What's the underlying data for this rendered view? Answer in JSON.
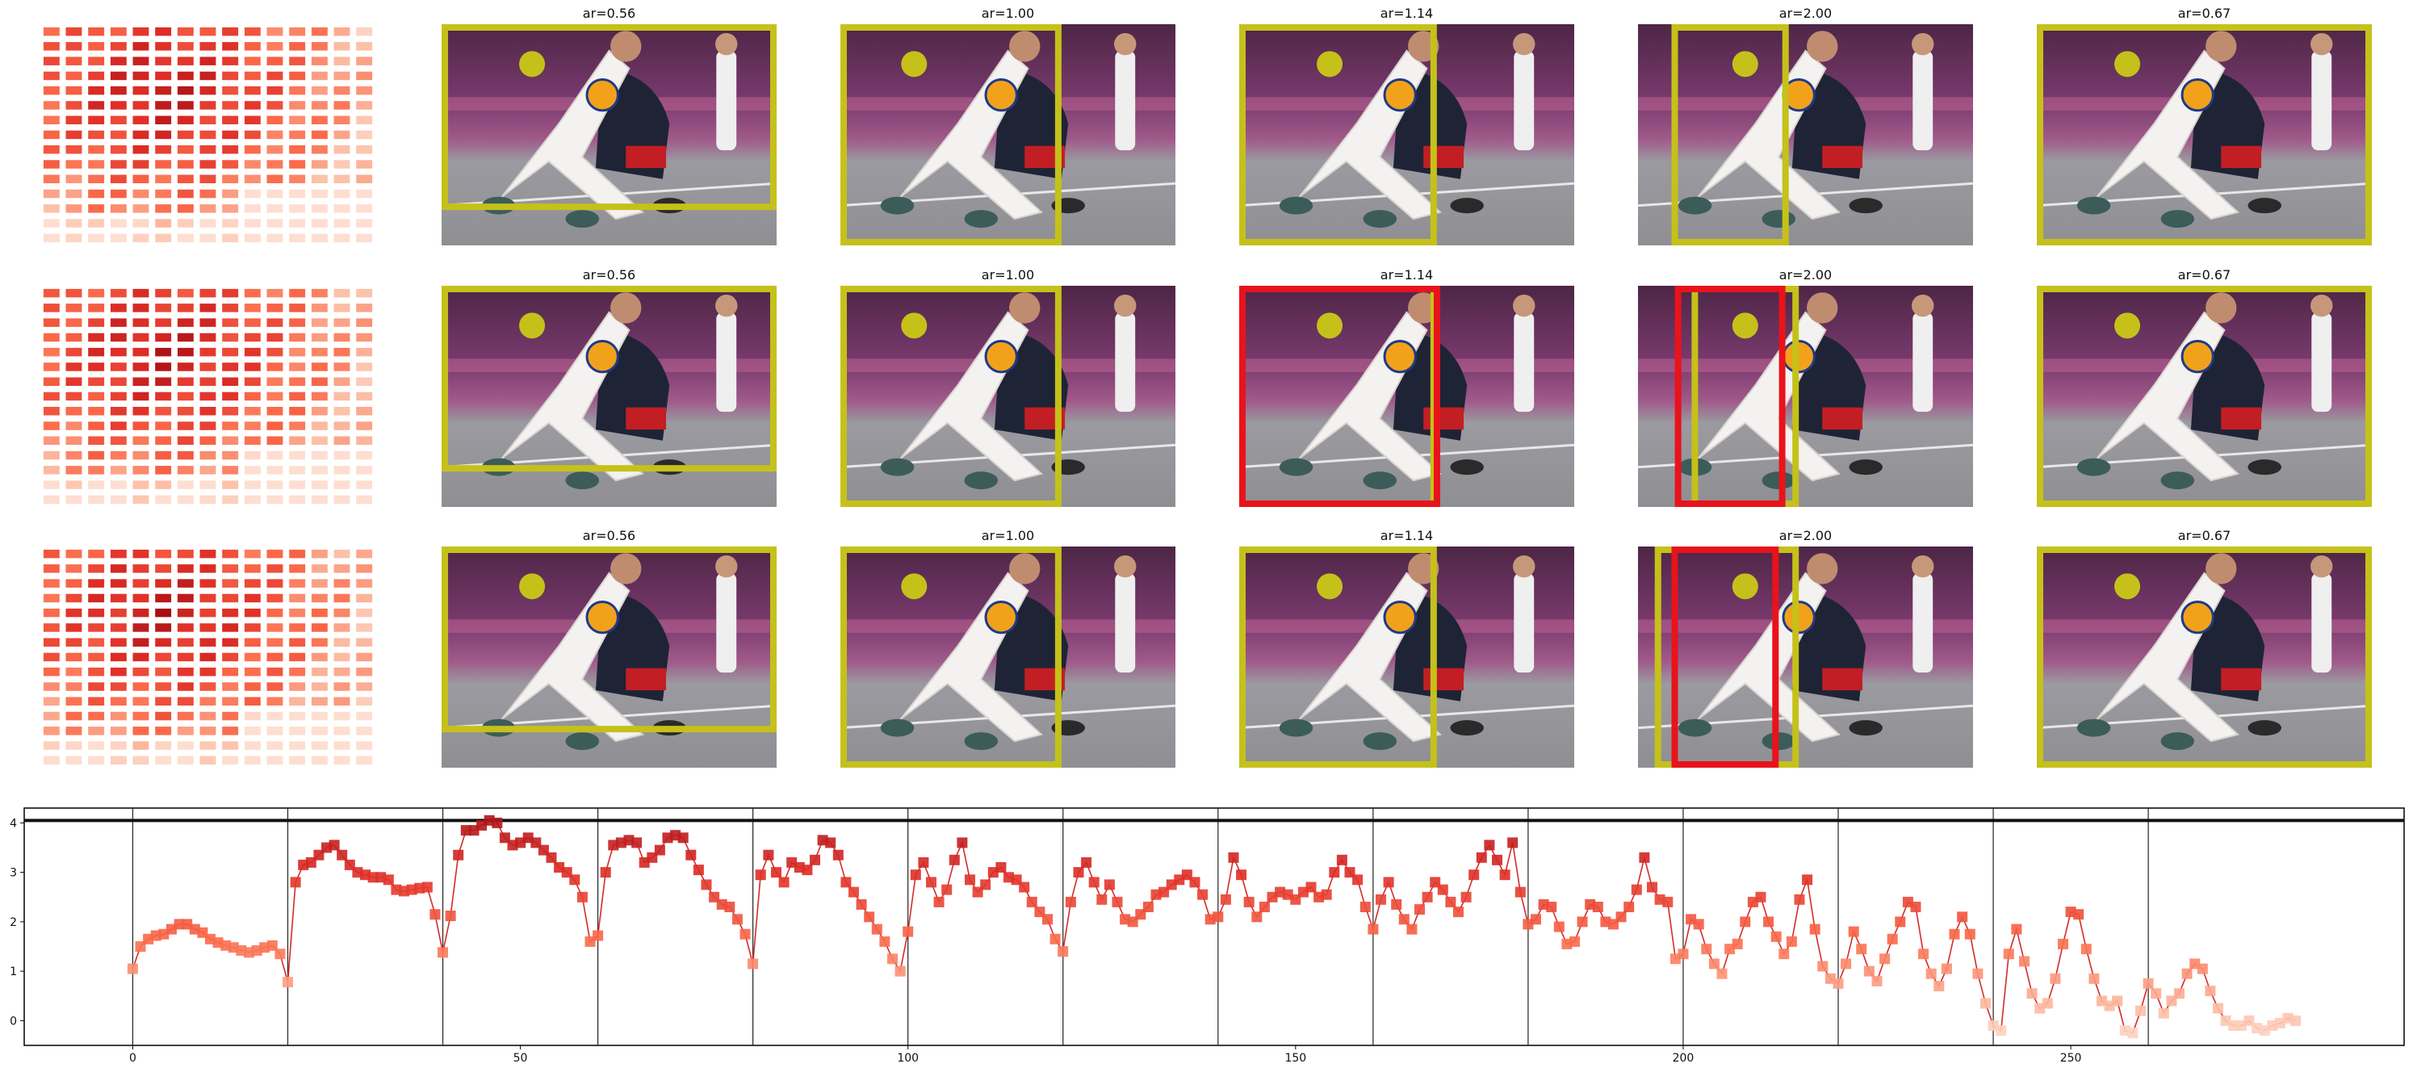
{
  "colors": {
    "gt_box": "#c5c11a",
    "pred_box": "#e8131b",
    "heat_low": "#fdece6",
    "heat_high": "#b41f2d",
    "line": "#d42b2b",
    "separator": "#222222",
    "court_top": "#7a3a6e",
    "court_bottom": "#8f8f93",
    "player_jersey": "#f4f2f0",
    "defender": "#1e2436",
    "ball": "#f2a21a"
  },
  "panels": {
    "rows": [
      {
        "titles": [
          "ar=0.56",
          "ar=1.00",
          "ar=1.14",
          "ar=2.00",
          "ar=0.67"
        ],
        "has_pred_box": [
          false,
          false,
          false,
          false,
          false
        ]
      },
      {
        "titles": [
          "ar=0.56",
          "ar=1.00",
          "ar=1.14",
          "ar=2.00",
          "ar=0.67"
        ],
        "has_pred_box": [
          false,
          false,
          true,
          true,
          false
        ]
      },
      {
        "titles": [
          "ar=0.56",
          "ar=1.00",
          "ar=1.14",
          "ar=2.00",
          "ar=0.67"
        ],
        "has_pred_box": [
          false,
          false,
          false,
          true,
          false
        ]
      }
    ],
    "heatmap_size": 15
  },
  "chart_data": {
    "type": "line",
    "xlim": [
      -14,
      293
    ],
    "ylim": [
      -0.5,
      4.3
    ],
    "x_ticks": [
      0,
      50,
      100,
      150,
      200,
      250
    ],
    "y_ticks": [
      0,
      1,
      2,
      3,
      4
    ],
    "vertical_separators": [
      0,
      20,
      40,
      60,
      80,
      100,
      120,
      140,
      160,
      180,
      200,
      220,
      240,
      260
    ],
    "horizontal_line_y": 4.05,
    "grid": false,
    "markers": "square",
    "segments": [
      [
        1.05,
        1.5,
        1.65,
        1.72,
        1.75,
        1.85,
        1.95,
        1.95,
        1.85,
        1.78,
        1.65,
        1.58,
        1.52,
        1.48,
        1.42,
        1.38,
        1.42,
        1.48,
        1.52,
        1.35
      ],
      [
        0.78,
        2.8,
        3.15,
        3.2,
        3.35,
        3.5,
        3.55,
        3.35,
        3.15,
        3.0,
        2.95,
        2.9,
        2.9,
        2.85,
        2.65,
        2.62,
        2.65,
        2.68,
        2.7,
        2.15
      ],
      [
        1.38,
        2.12,
        3.35,
        3.85,
        3.85,
        3.95,
        4.05,
        4.0,
        3.7,
        3.55,
        3.6,
        3.7,
        3.6,
        3.45,
        3.3,
        3.1,
        3.0,
        2.85,
        2.5,
        1.6
      ],
      [
        1.72,
        3.0,
        3.55,
        3.6,
        3.65,
        3.6,
        3.2,
        3.3,
        3.45,
        3.7,
        3.75,
        3.7,
        3.35,
        3.05,
        2.75,
        2.5,
        2.35,
        2.3,
        2.05,
        1.75
      ],
      [
        1.15,
        2.95,
        3.35,
        3.0,
        2.8,
        3.2,
        3.1,
        3.05,
        3.25,
        3.65,
        3.6,
        3.35,
        2.8,
        2.6,
        2.35,
        2.1,
        1.85,
        1.6,
        1.25,
        1.0
      ],
      [
        1.8,
        2.95,
        3.2,
        2.8,
        2.4,
        2.65,
        3.25,
        3.6,
        2.85,
        2.6,
        2.75,
        3.0,
        3.1,
        2.9,
        2.85,
        2.7,
        2.4,
        2.2,
        2.05,
        1.65
      ],
      [
        1.4,
        2.4,
        3.0,
        3.2,
        2.8,
        2.45,
        2.75,
        2.4,
        2.05,
        2.0,
        2.15,
        2.3,
        2.55,
        2.6,
        2.75,
        2.85,
        2.95,
        2.8,
        2.55,
        2.05
      ],
      [
        2.1,
        2.45,
        3.3,
        2.95,
        2.4,
        2.1,
        2.3,
        2.5,
        2.6,
        2.55,
        2.45,
        2.6,
        2.7,
        2.5,
        2.55,
        3.0,
        3.25,
        3.0,
        2.85,
        2.3
      ],
      [
        1.85,
        2.45,
        2.8,
        2.35,
        2.05,
        1.85,
        2.25,
        2.5,
        2.8,
        2.65,
        2.4,
        2.2,
        2.5,
        2.95,
        3.3,
        3.55,
        3.25,
        2.95,
        3.6,
        2.6
      ],
      [
        1.95,
        2.05,
        2.35,
        2.3,
        1.9,
        1.55,
        1.6,
        2.0,
        2.35,
        2.3,
        2.0,
        1.95,
        2.1,
        2.3,
        2.65,
        3.3,
        2.7,
        2.45,
        2.4,
        1.25
      ],
      [
        1.35,
        2.05,
        1.95,
        1.45,
        1.15,
        0.95,
        1.45,
        1.55,
        2.0,
        2.4,
        2.5,
        2.0,
        1.7,
        1.35,
        1.6,
        2.45,
        2.85,
        1.85,
        1.1,
        0.85
      ],
      [
        0.75,
        1.15,
        1.8,
        1.45,
        1.0,
        0.8,
        1.25,
        1.65,
        2.0,
        2.4,
        2.3,
        1.35,
        0.95,
        0.7,
        1.05,
        1.75,
        2.1,
        1.75,
        0.95,
        0.35
      ],
      [
        -0.1,
        -0.2,
        1.35,
        1.85,
        1.2,
        0.55,
        0.25,
        0.35,
        0.85,
        1.55,
        2.2,
        2.15,
        1.45,
        0.85,
        0.4,
        0.3,
        0.4,
        -0.2,
        -0.25,
        0.2
      ],
      [
        0.75,
        0.55,
        0.15,
        0.4,
        0.55,
        0.95,
        1.15,
        1.05,
        0.6,
        0.25,
        0.0,
        -0.1,
        -0.1,
        0.0,
        -0.15,
        -0.2,
        -0.1,
        -0.05,
        0.05,
        0.0
      ]
    ]
  }
}
